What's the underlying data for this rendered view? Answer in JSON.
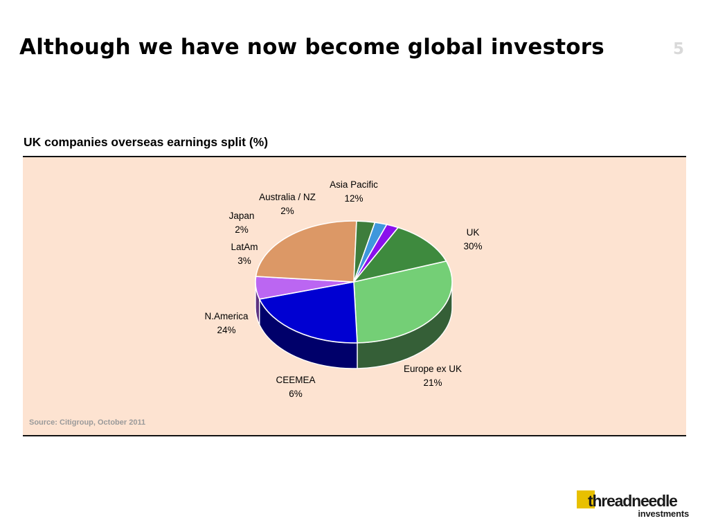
{
  "slide": {
    "title": "Although we have now become global investors",
    "page_number": "5"
  },
  "chart_heading": "UK companies overseas earnings split (%)",
  "source": "Source: Citigroup, October 2011",
  "logo": {
    "wordmark": "threadneedle",
    "subtitle": "investments",
    "accent_color": "#e8c000"
  },
  "chart_data": {
    "type": "pie",
    "three_d": true,
    "title": "UK companies overseas earnings split (%)",
    "unit": "%",
    "legend": "none",
    "slices": [
      {
        "name": "UK",
        "value": 30,
        "label": "30%",
        "color": "#74cf76",
        "side_color": "#355f37"
      },
      {
        "name": "Europe ex UK",
        "value": 21,
        "label": "21%",
        "color": "#0000d2",
        "side_color": "#00006a"
      },
      {
        "name": "CEEMEA",
        "value": 6,
        "label": "6%",
        "color": "#bb66f2",
        "side_color": "#5e3380"
      },
      {
        "name": "N.America",
        "value": 24,
        "label": "24%",
        "color": "#dc9866",
        "side_color": "#6a4a33"
      },
      {
        "name": "LatAm",
        "value": 3,
        "label": "3%",
        "color": "#3e7d3c",
        "side_color": "#243f23"
      },
      {
        "name": "Japan",
        "value": 2,
        "label": "2%",
        "color": "#3f97dc",
        "side_color": "#204a6c"
      },
      {
        "name": "Australia / NZ",
        "value": 2,
        "label": "2%",
        "color": "#8a10ec",
        "side_color": "#440877"
      },
      {
        "name": "Asia Pacific",
        "value": 12,
        "label": "12%",
        "color": "#3e8a3e",
        "side_color": "#234a23"
      }
    ]
  }
}
